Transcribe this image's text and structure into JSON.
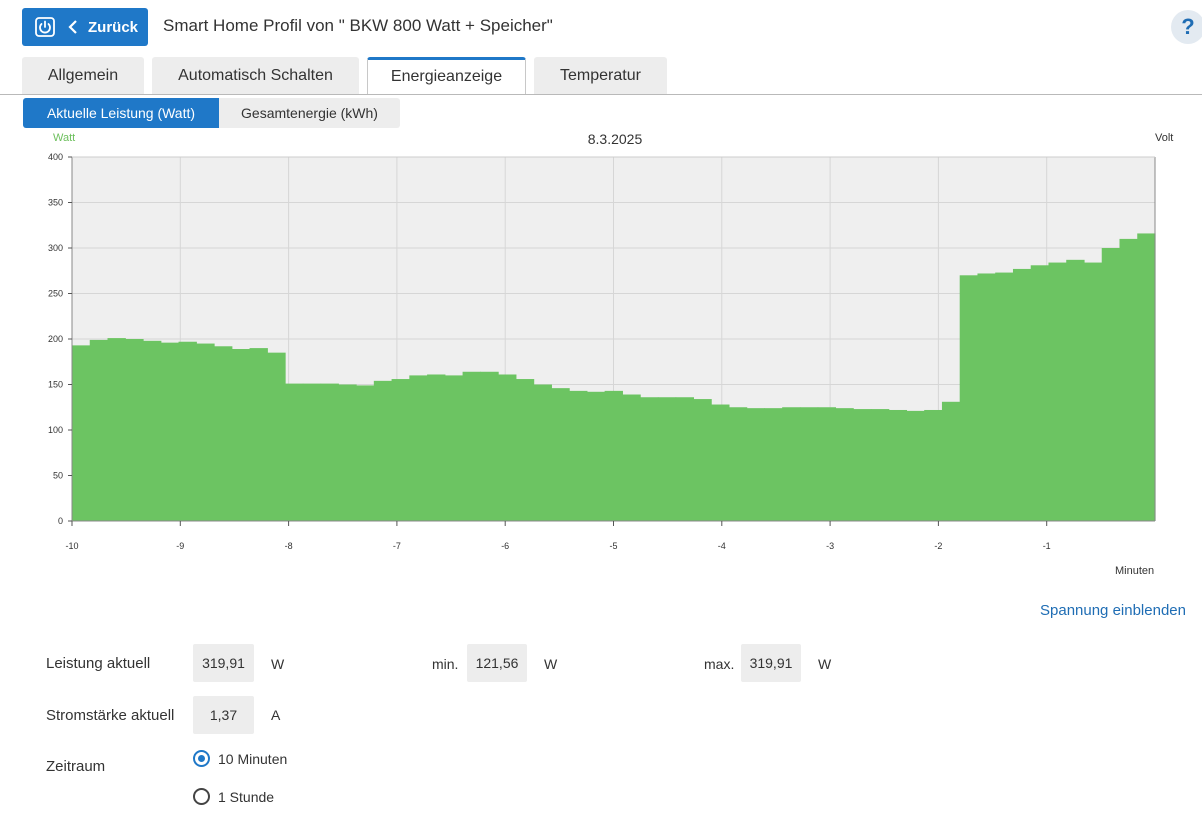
{
  "header": {
    "back_label": "Zurück",
    "title": "Smart Home Profil von \" BKW 800 Watt + Speicher\"",
    "help_label": "?"
  },
  "tabs": [
    {
      "label": "Allgemein",
      "active": false
    },
    {
      "label": "Automatisch Schalten",
      "active": false
    },
    {
      "label": "Energieanzeige",
      "active": true
    },
    {
      "label": "Temperatur",
      "active": false
    }
  ],
  "subtabs": [
    {
      "label": "Aktuelle Leistung (Watt)",
      "active": true
    },
    {
      "label": "Gesamtenergie (kWh)",
      "active": false
    }
  ],
  "chart_data": {
    "type": "area",
    "title": "8.3.2025",
    "ylabel": "Watt",
    "y2label": "Volt",
    "xlabel": "Minuten",
    "ylim": [
      0,
      400
    ],
    "xlim": [
      -10,
      0
    ],
    "yticks": [
      0,
      50,
      100,
      150,
      200,
      250,
      300,
      350,
      400
    ],
    "xticks": [
      -10,
      -9,
      -8,
      -7,
      -6,
      -5,
      -4,
      -3,
      -2,
      -1
    ],
    "grid": true,
    "color": "#6cc462",
    "step": 0.1667,
    "values": [
      193,
      199,
      201,
      200,
      198,
      196,
      197,
      195,
      192,
      189,
      190,
      185,
      151,
      151,
      151,
      150,
      149,
      154,
      156,
      160,
      161,
      160,
      164,
      164,
      161,
      156,
      150,
      146,
      143,
      142,
      143,
      139,
      136,
      136,
      136,
      134,
      128,
      125,
      124,
      124,
      125,
      125,
      125,
      124,
      123,
      123,
      122,
      121,
      122,
      131,
      270,
      272,
      273,
      277,
      281,
      284,
      287,
      284,
      300,
      310,
      316
    ]
  },
  "volt_link": "Spannung einblenden",
  "stats": {
    "leistung_label": "Leistung aktuell",
    "leistung_value": "319,91",
    "leistung_unit": "W",
    "min_label": "min.",
    "min_value": "121,56",
    "min_unit": "W",
    "max_label": "max.",
    "max_value": "319,91",
    "max_unit": "W",
    "strom_label": "Stromstärke aktuell",
    "strom_value": "1,37",
    "strom_unit": "A",
    "zeitraum_label": "Zeitraum",
    "options": [
      {
        "label": "10 Minuten",
        "selected": true
      },
      {
        "label": "1 Stunde",
        "selected": false
      }
    ]
  },
  "colors": {
    "accent": "#1f78c8",
    "series": "#6cc462",
    "plot_bg": "#efefef"
  }
}
